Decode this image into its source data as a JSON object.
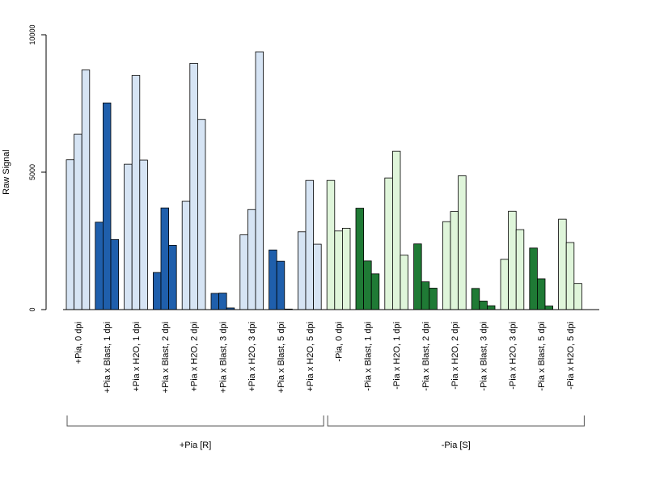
{
  "chart_data": {
    "type": "bar",
    "ylabel": "Raw Signal",
    "ylim": [
      0,
      10000
    ],
    "yticks": [
      0,
      5000,
      10000
    ],
    "categories": [
      "+Pia, 0 dpi",
      "+Pia x Blast, 1 dpi",
      "+Pia x H2O, 1 dpi",
      "+Pia x Blast, 2 dpi",
      "+Pia x H2O, 2 dpi",
      "+Pia x Blast, 3 dpi",
      "+Pia x H2O, 3 dpi",
      "+Pia x Blast, 5 dpi",
      "+Pia x H2O, 5 dpi",
      "-Pia, 0 dpi",
      "-Pia x Blast, 1 dpi",
      "-Pia x H2O, 1 dpi",
      "-Pia x Blast, 2 dpi",
      "-Pia x H2O, 2 dpi",
      "-Pia x Blast, 3 dpi",
      "-Pia x H2O, 3 dpi",
      "-Pia x Blast, 5 dpi",
      "-Pia x H2O, 5 dpi"
    ],
    "values": [
      [
        5450,
        6380,
        8720
      ],
      [
        3180,
        7520,
        2550
      ],
      [
        5290,
        8520,
        5440
      ],
      [
        1350,
        3700,
        2340
      ],
      [
        3940,
        8960,
        6920
      ],
      [
        590,
        600,
        60
      ],
      [
        2720,
        3640,
        9380
      ],
      [
        2170,
        1760,
        20
      ],
      [
        2830,
        4700,
        2380
      ],
      [
        4700,
        2860,
        2960
      ],
      [
        3690,
        1770,
        1300
      ],
      [
        4790,
        5760,
        1980
      ],
      [
        2390,
        1010,
        780
      ],
      [
        3200,
        3570,
        4870
      ],
      [
        770,
        310,
        140
      ],
      [
        1830,
        3580,
        2910
      ],
      [
        2240,
        1120,
        130
      ],
      [
        3290,
        2440,
        950
      ]
    ],
    "bar_colors": [
      "#d6e4f4",
      "#1f5fac",
      "#d6e4f4",
      "#1f5fac",
      "#d6e4f4",
      "#1f5fac",
      "#d6e4f4",
      "#1f5fac",
      "#d6e4f4",
      "#dff5da",
      "#1f7a35",
      "#dff5da",
      "#1f7a35",
      "#dff5da",
      "#1f7a35",
      "#dff5da",
      "#1f7a35",
      "#dff5da"
    ],
    "groups": [
      {
        "label": "+Pia [R]",
        "from": 0,
        "to": 8
      },
      {
        "label": "-Pia [S]",
        "from": 9,
        "to": 17
      }
    ],
    "legend": "none",
    "grid": false
  }
}
